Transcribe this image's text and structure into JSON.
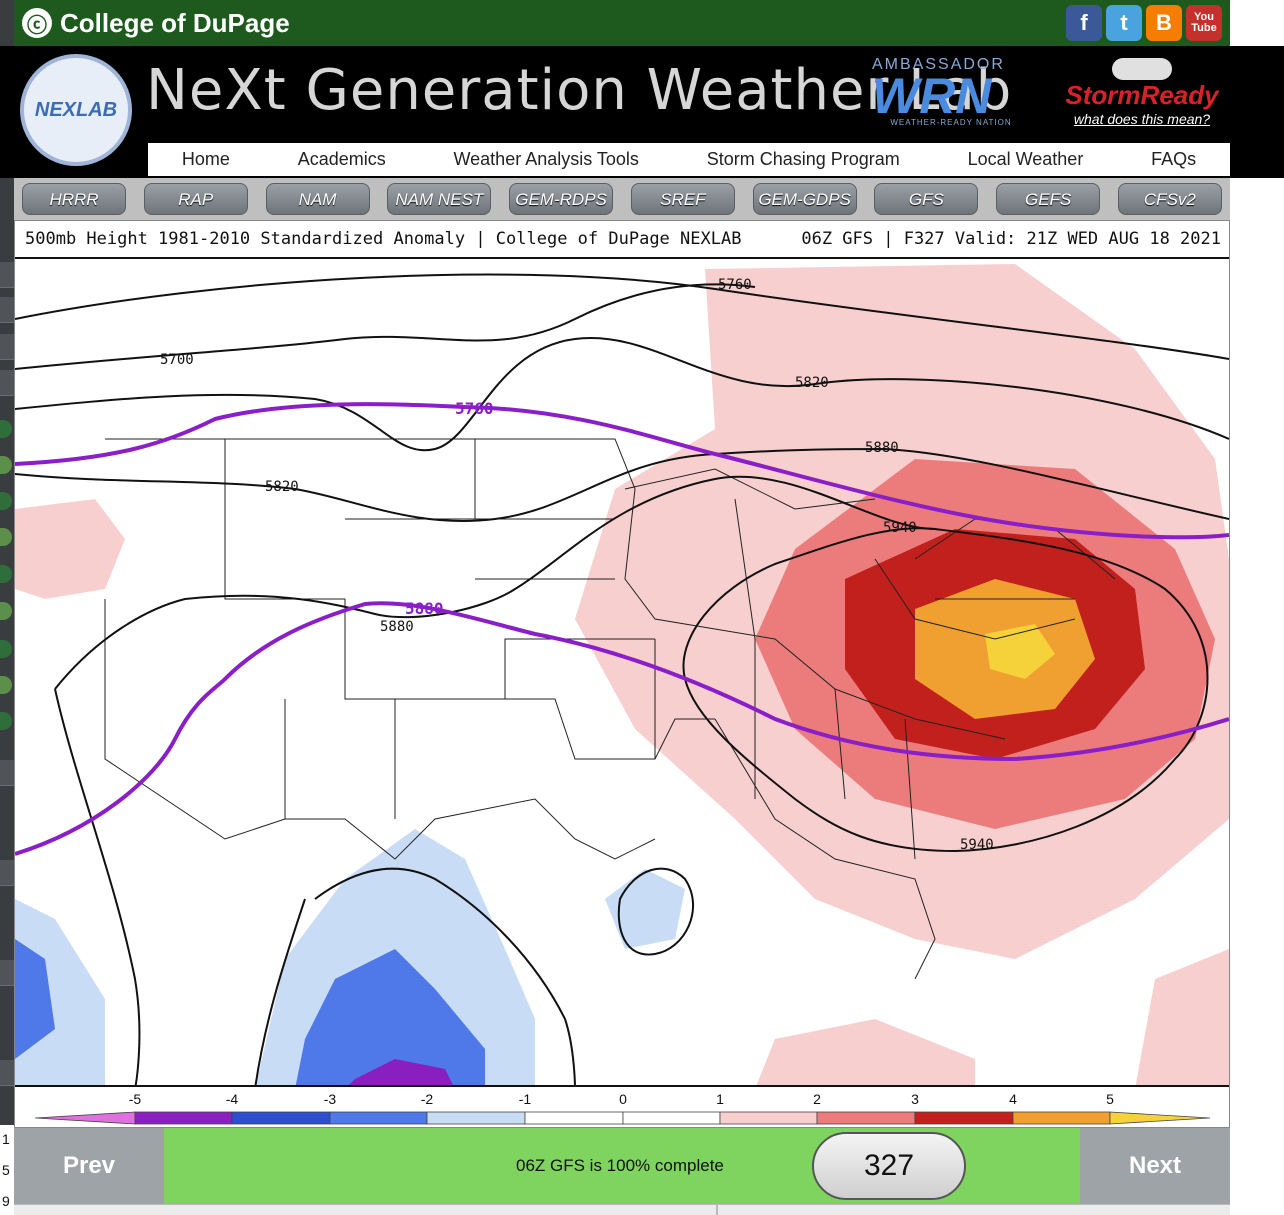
{
  "top_bar": {
    "brand": "College of DuPage",
    "brand_mark": "ⓒ"
  },
  "social": [
    {
      "name": "facebook",
      "label": "f"
    },
    {
      "name": "twitter",
      "label": "t"
    },
    {
      "name": "blogger",
      "label": "B"
    },
    {
      "name": "youtube",
      "label": "You Tube"
    }
  ],
  "header": {
    "logo_text": "NEXLAB",
    "title": "NeXt Generation Weather Lab",
    "wrn_top": "AMBASSADOR",
    "wrn_big": "WRN",
    "wrn_sub": "WEATHER-READY NATION",
    "storm_name": "StormReady",
    "storm_link": "what does this mean?"
  },
  "nav": [
    "Home",
    "Academics",
    "Weather Analysis Tools",
    "Storm Chasing Program",
    "Local Weather",
    "FAQs"
  ],
  "models": [
    "HRRR",
    "RAP",
    "NAM",
    "NAM NEST",
    "GEM-RDPS",
    "SREF",
    "GEM-GDPS",
    "GFS",
    "GEFS",
    "CFSv2"
  ],
  "map": {
    "title_left": "500mb Height 1981-2010 Standardized Anomaly | College of DuPage NEXLAB",
    "title_right": "06Z GFS | F327 Valid: 21Z WED AUG 18 2021",
    "contour_labels": [
      "5760",
      "5700",
      "5820",
      "5880",
      "5760",
      "5880",
      "5880",
      "5940",
      "5820",
      "5940"
    ],
    "colors": {
      "neg5": "#e070e0",
      "neg4": "#8a1fc0",
      "neg3": "#2b4fd0",
      "neg2": "#4f78e8",
      "neg1": "#c8dcf6",
      "zero": "#ffffff",
      "pos1": "#f7cfcf",
      "pos2": "#ec7c7c",
      "pos3": "#c2201c",
      "pos4": "#f0a030",
      "pos5": "#f6d23a",
      "contour": "#111111",
      "purple": "#8a1fc8"
    }
  },
  "scale": {
    "ticks": [
      "-5",
      "-4",
      "-3",
      "-2",
      "-1",
      "0",
      "1",
      "2",
      "3",
      "4",
      "5"
    ]
  },
  "bottom": {
    "prev": "Prev",
    "status": "06Z GFS is 100% complete",
    "frame": "327",
    "next": "Next"
  },
  "side_digits": [
    "1",
    "5",
    "9"
  ]
}
